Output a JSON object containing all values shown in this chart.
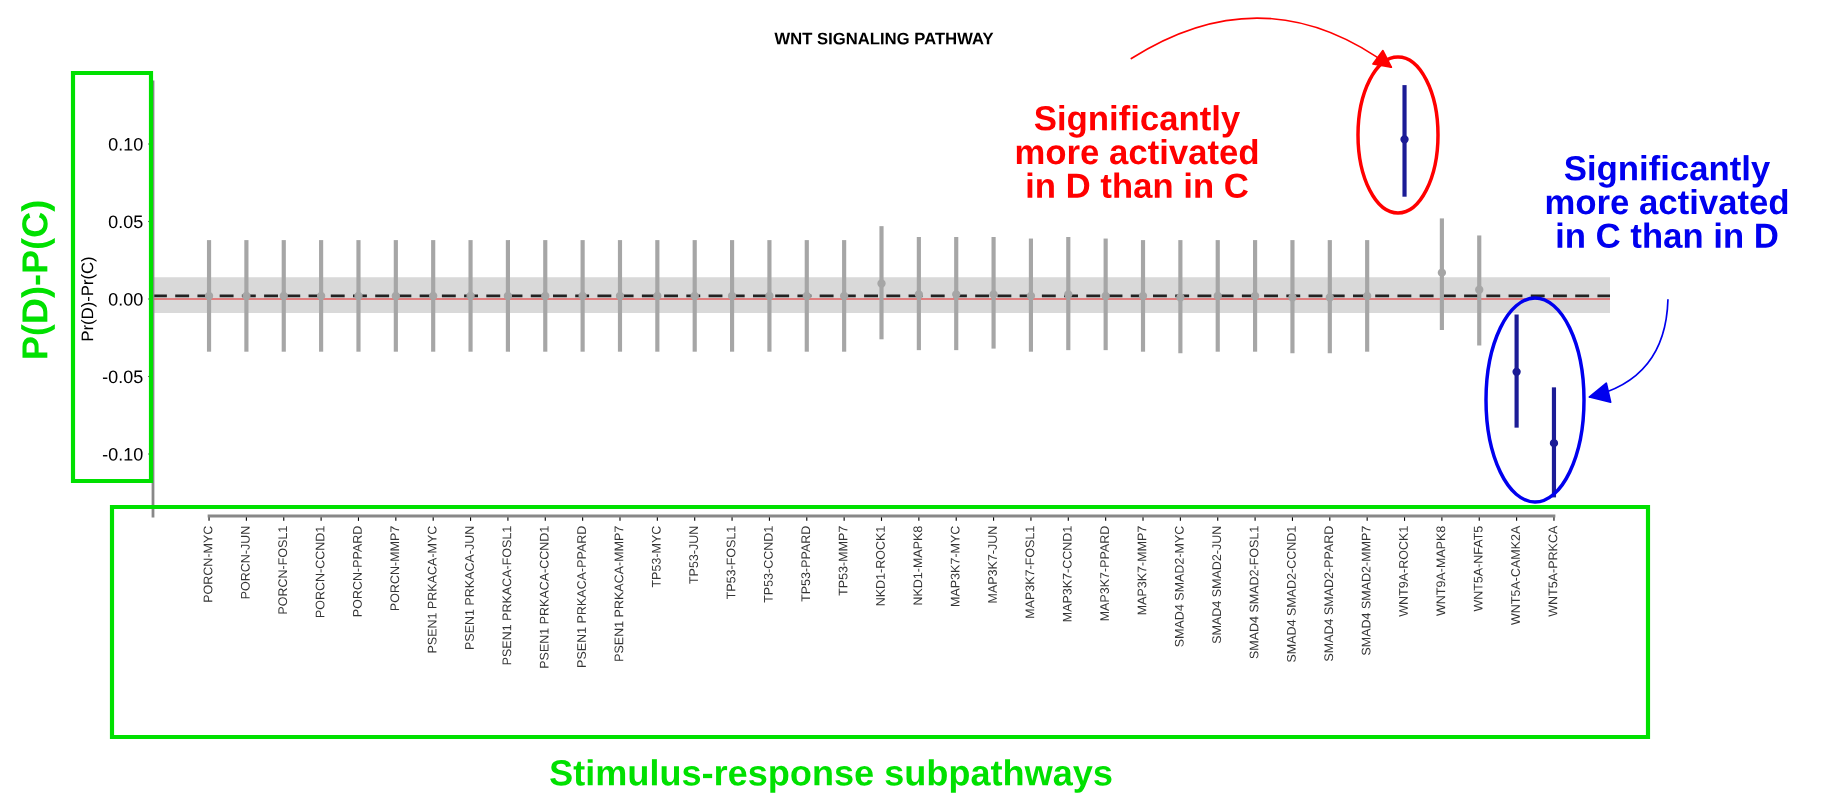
{
  "chart_data": {
    "type": "scatter",
    "title": "WNT SIGNALING PATHWAY",
    "ylabel": "Pr(D)-Pr(C)",
    "categories": [
      "PORCN-MYC",
      "PORCN-JUN",
      "PORCN-FOSL1",
      "PORCN-CCND1",
      "PORCN-PPARD",
      "PORCN-MMP7",
      "PSEN1 PRKACA-MYC",
      "PSEN1 PRKACA-JUN",
      "PSEN1 PRKACA-FOSL1",
      "PSEN1 PRKACA-CCND1",
      "PSEN1 PRKACA-PPARD",
      "PSEN1 PRKACA-MMP7",
      "TP53-MYC",
      "TP53-JUN",
      "TP53-FOSL1",
      "TP53-CCND1",
      "TP53-PPARD",
      "TP53-MMP7",
      "NKD1-ROCK1",
      "NKD1-MAPK8",
      "MAP3K7-MYC",
      "MAP3K7-JUN",
      "MAP3K7-FOSL1",
      "MAP3K7-CCND1",
      "MAP3K7-PPARD",
      "MAP3K7-MMP7",
      "SMAD4 SMAD2-MYC",
      "SMAD4 SMAD2-JUN",
      "SMAD4 SMAD2-FOSL1",
      "SMAD4 SMAD2-CCND1",
      "SMAD4 SMAD2-PPARD",
      "SMAD4 SMAD2-MMP7",
      "WNT9A-ROCK1",
      "WNT9A-MAPK8",
      "WNT5A-NFAT5",
      "WNT5A-CAMK2A",
      "WNT5A-PRKCA"
    ],
    "series": [
      {
        "values": [
          0.002,
          0.002,
          0.002,
          0.002,
          0.002,
          0.002,
          0.002,
          0.002,
          0.002,
          0.002,
          0.002,
          0.002,
          0.002,
          0.002,
          0.002,
          0.002,
          0.002,
          0.002,
          0.01,
          0.003,
          0.003,
          0.003,
          0.002,
          0.003,
          0.002,
          0.002,
          0.001,
          0.002,
          0.002,
          0.001,
          0.001,
          0.002,
          0.103,
          0.017,
          0.006,
          -0.047,
          -0.093
        ],
        "errors": [
          [
            -0.034,
            0.038
          ],
          [
            -0.034,
            0.038
          ],
          [
            -0.034,
            0.038
          ],
          [
            -0.034,
            0.038
          ],
          [
            -0.034,
            0.038
          ],
          [
            -0.034,
            0.038
          ],
          [
            -0.034,
            0.038
          ],
          [
            -0.034,
            0.038
          ],
          [
            -0.034,
            0.038
          ],
          [
            -0.034,
            0.038
          ],
          [
            -0.034,
            0.038
          ],
          [
            -0.034,
            0.038
          ],
          [
            -0.034,
            0.038
          ],
          [
            -0.034,
            0.038
          ],
          [
            -0.034,
            0.038
          ],
          [
            -0.034,
            0.038
          ],
          [
            -0.034,
            0.038
          ],
          [
            -0.034,
            0.038
          ],
          [
            -0.026,
            0.047
          ],
          [
            -0.033,
            0.04
          ],
          [
            -0.033,
            0.04
          ],
          [
            -0.032,
            0.04
          ],
          [
            -0.034,
            0.039
          ],
          [
            -0.033,
            0.04
          ],
          [
            -0.033,
            0.039
          ],
          [
            -0.034,
            0.038
          ],
          [
            -0.035,
            0.038
          ],
          [
            -0.034,
            0.038
          ],
          [
            -0.034,
            0.038
          ],
          [
            -0.035,
            0.038
          ],
          [
            -0.035,
            0.038
          ],
          [
            -0.034,
            0.038
          ],
          [
            0.066,
            0.138
          ],
          [
            -0.02,
            0.052
          ],
          [
            -0.03,
            0.041
          ],
          [
            -0.083,
            -0.01
          ],
          [
            -0.128,
            -0.057
          ]
        ],
        "colors": [
          "#a6a6a6",
          "#a6a6a6",
          "#a6a6a6",
          "#a6a6a6",
          "#a6a6a6",
          "#a6a6a6",
          "#a6a6a6",
          "#a6a6a6",
          "#a6a6a6",
          "#a6a6a6",
          "#a6a6a6",
          "#a6a6a6",
          "#a6a6a6",
          "#a6a6a6",
          "#a6a6a6",
          "#a6a6a6",
          "#a6a6a6",
          "#a6a6a6",
          "#a6a6a6",
          "#a6a6a6",
          "#a6a6a6",
          "#a6a6a6",
          "#a6a6a6",
          "#a6a6a6",
          "#a6a6a6",
          "#a6a6a6",
          "#a6a6a6",
          "#a6a6a6",
          "#a6a6a6",
          "#a6a6a6",
          "#a6a6a6",
          "#a6a6a6",
          "#1c1c96",
          "#a6a6a6",
          "#a6a6a6",
          "#1c1c96",
          "#1c1c96"
        ]
      }
    ],
    "ylim": [
      -0.14,
      0.14
    ],
    "yticks": [
      {
        "value": 0.1,
        "label": "0.10"
      },
      {
        "value": 0.05,
        "label": "0.05"
      },
      {
        "value": 0,
        "label": "0.00"
      },
      {
        "value": -0.05,
        "label": "-0.05"
      },
      {
        "value": -0.1,
        "label": "-0.10"
      }
    ],
    "marker": "circle",
    "grid": false,
    "legend": false,
    "ref_lines": [
      {
        "axis": "y",
        "value": 0,
        "color": "#e06060",
        "line_style": "solid"
      },
      {
        "axis": "y",
        "value": 0.002,
        "color": "#222222",
        "line_style": "dashed"
      }
    ],
    "bands": [
      {
        "axis": "y",
        "from": -0.009,
        "to": 0.014,
        "color": "#d9d9d9"
      }
    ],
    "annotations": [
      "Significantly\nmore activated\nin D than in C",
      "Significantly\nmore activated\nin C than in D",
      "P(D)-P(C)",
      "Stimulus-response subpathways"
    ]
  }
}
